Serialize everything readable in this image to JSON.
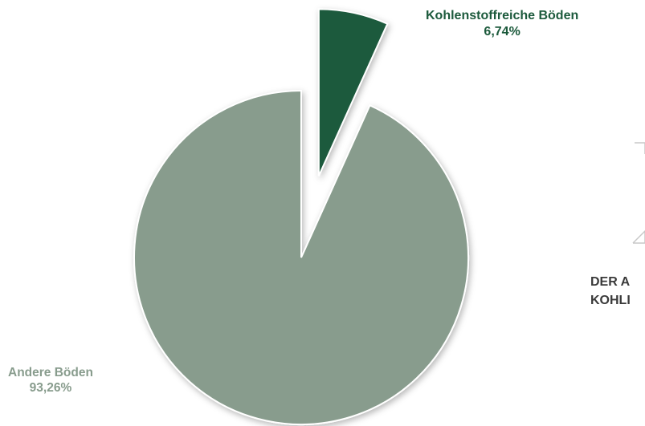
{
  "chart_data": {
    "type": "pie",
    "slices": [
      {
        "label": "Kohlenstoffreiche Böden",
        "value": 6.74,
        "value_label": "6,74%",
        "color": "#1c5a3c",
        "exploded": true
      },
      {
        "label": "Andere Böden",
        "value": 93.26,
        "value_label": "93,26%",
        "color": "#889c8d",
        "exploded": false
      }
    ]
  },
  "side_text": {
    "line1": "DER A",
    "line2": "KOHLI"
  }
}
